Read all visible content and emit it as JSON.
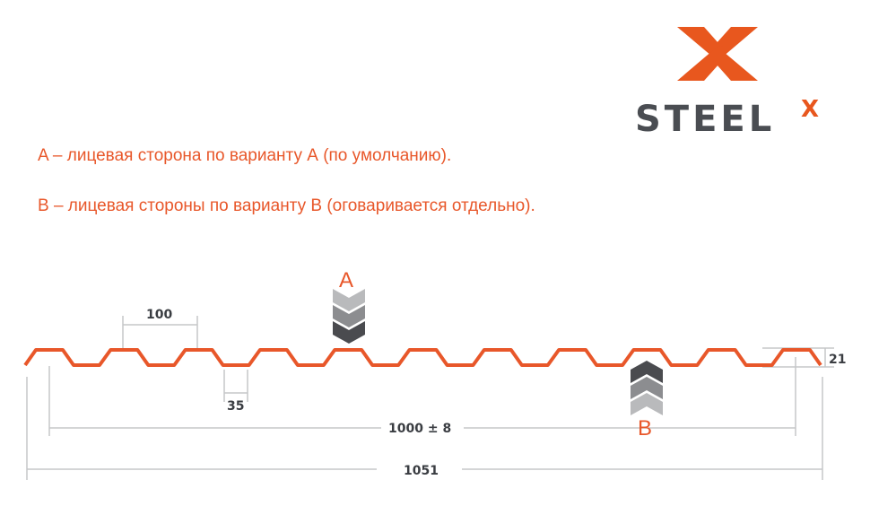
{
  "logo": {
    "text": "STEEL",
    "superscript": "X",
    "brand_color": "#e8571e",
    "text_color": "#4a4d52"
  },
  "notes": [
    "A – лицевая сторона по варианту А (по умолчанию).",
    "B – лицевая стороны по варианту B (оговаривается отдельно)."
  ],
  "profile": {
    "color": "#e8572a",
    "waves": 11
  },
  "dimensions": {
    "pitch": "100",
    "bottom_width": "35",
    "height": "21",
    "useful_width": "1000 ± 8",
    "total_width": "1051"
  },
  "sides": {
    "a_label": "A",
    "b_label": "B"
  },
  "colors": {
    "dim_line": "#c5c7c9",
    "chevron_dark": "#4a4b4f",
    "chevron_mid": "#8c8d90",
    "chevron_light": "#b9babc"
  }
}
